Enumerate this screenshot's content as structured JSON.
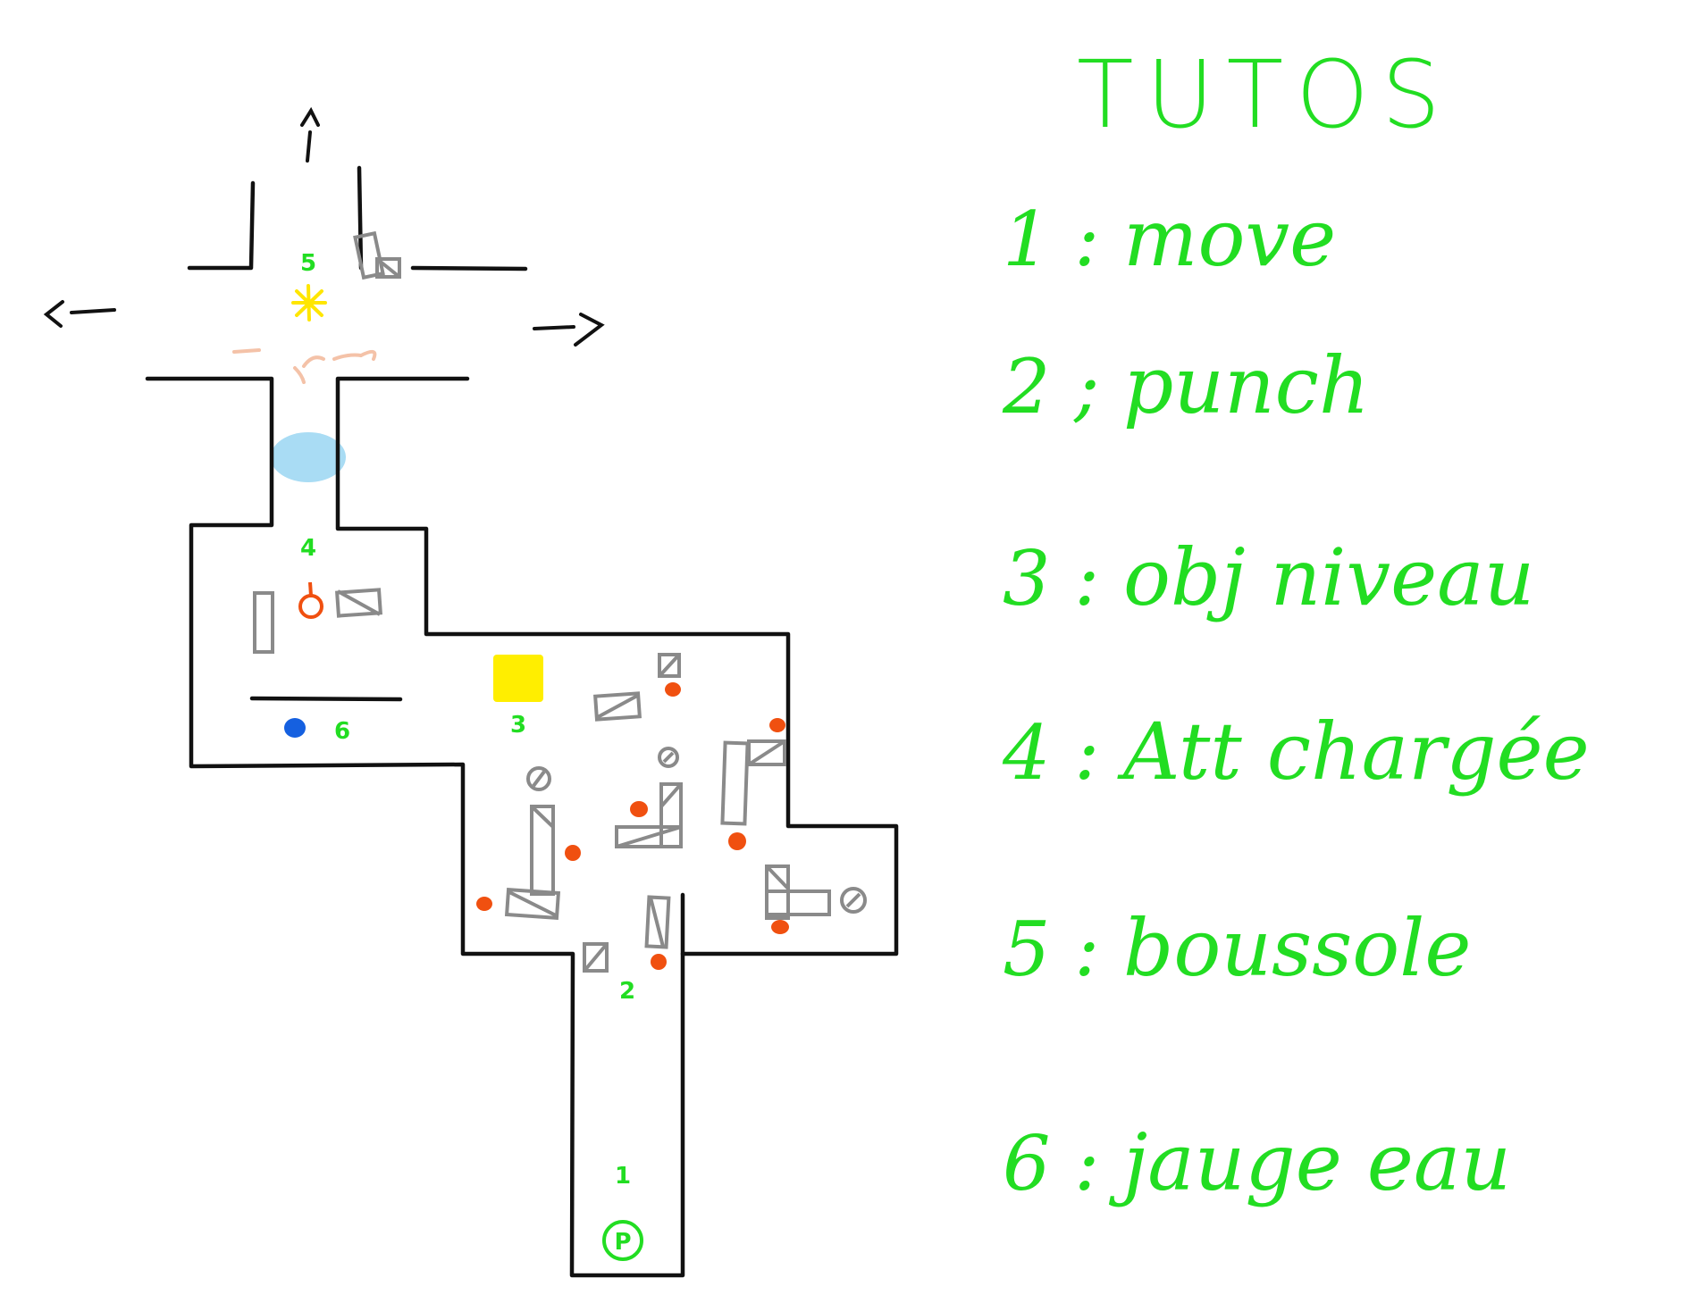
{
  "colors": {
    "wall": "#111111",
    "label": "#22dd22",
    "crate": "#8a8a8a",
    "enemy": "#f05010",
    "objective": "#ffee00",
    "water": "#a9dcf4",
    "water_gauge": "#1560e0",
    "compass": "#ffe600",
    "transition": "#f4c2a8"
  },
  "map": {
    "markers": [
      {
        "id": "1",
        "label": "1"
      },
      {
        "id": "2",
        "label": "2"
      },
      {
        "id": "3",
        "label": "3"
      },
      {
        "id": "4",
        "label": "4"
      },
      {
        "id": "5",
        "label": "5"
      },
      {
        "id": "6",
        "label": "6"
      }
    ],
    "player_start": "P",
    "exits": [
      "up",
      "left",
      "right"
    ],
    "icons": [
      "player-start-icon",
      "compass-icon",
      "objective-icon",
      "water-gauge-icon",
      "charged-attack-icon",
      "enemy-icon",
      "crate-icon",
      "barrel-icon",
      "water-puddle-icon",
      "arrow-up-icon",
      "arrow-left-icon",
      "arrow-right-icon"
    ]
  },
  "legend": {
    "title": "TUTOS",
    "items": [
      {
        "num": "1 :",
        "text": "move"
      },
      {
        "num": "2 ;",
        "text": "punch"
      },
      {
        "num": "3 :",
        "text": "obj niveau"
      },
      {
        "num": "4 :",
        "text": "Att chargée"
      },
      {
        "num": "5 :",
        "text": "boussole"
      },
      {
        "num": "6 :",
        "text": "jauge eau"
      }
    ]
  }
}
